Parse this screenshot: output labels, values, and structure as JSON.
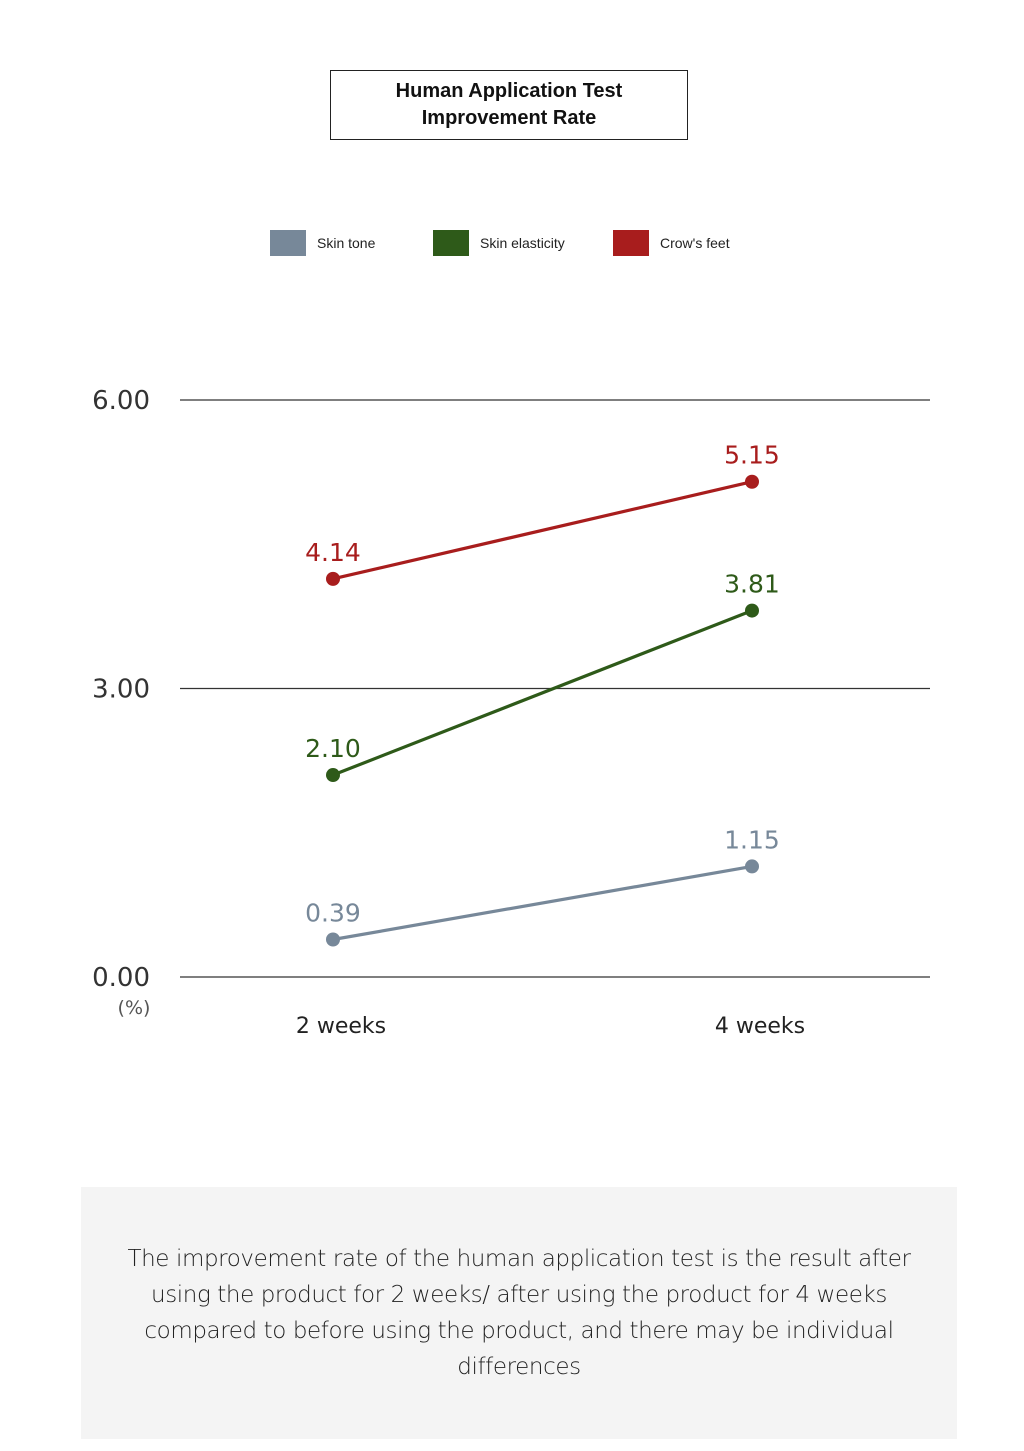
{
  "chart_data": {
    "type": "line",
    "title": "Human Application Test",
    "subtitle": "Improvement Rate",
    "categories": [
      "2 weeks",
      "4 weeks"
    ],
    "ylim": [
      0,
      6
    ],
    "yticks": [
      "6.00",
      "3.00",
      "0.00"
    ],
    "ytick_values": [
      6,
      3,
      0
    ],
    "yunit": "(%)",
    "grid": true,
    "legend_position": "top",
    "series": [
      {
        "name": "Skin tone",
        "color": "#778899",
        "values": [
          0.39,
          1.15
        ],
        "labels": [
          "0.39",
          "1.15"
        ]
      },
      {
        "name": "Skin elasticity",
        "color": "#2e5a19",
        "values": [
          2.1,
          3.81
        ],
        "labels": [
          "2.10",
          "3.81"
        ]
      },
      {
        "name": "Crow's feet",
        "color": "#a81d1d",
        "values": [
          4.14,
          5.15
        ],
        "labels": [
          "4.14",
          "5.15"
        ]
      }
    ]
  },
  "note": "The improvement rate of the human application test is the result after using the product for 2 weeks/ after using the product for 4 weeks compared to before using the product, and there may be individual differences"
}
